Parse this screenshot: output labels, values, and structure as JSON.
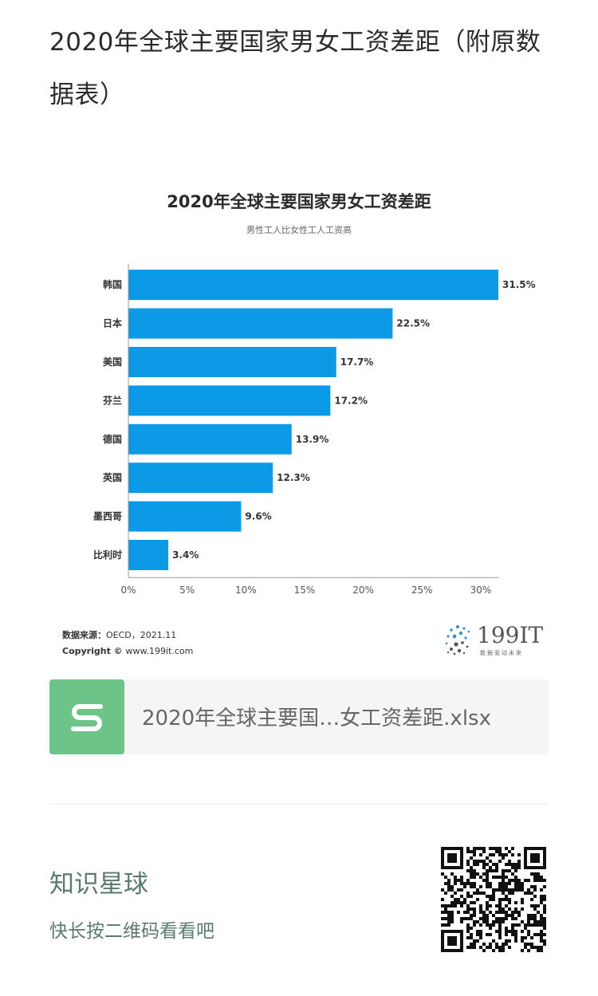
{
  "article": {
    "title": "2020年全球主要国家男女工资差距（附原数据表）"
  },
  "chart_data": {
    "type": "bar",
    "orientation": "horizontal",
    "title": "2020年全球主要国家男女工资差距",
    "subtitle": "男性工人比女性工人工资高",
    "categories": [
      "韩国",
      "日本",
      "美国",
      "芬兰",
      "德国",
      "英国",
      "墨西哥",
      "比利时"
    ],
    "values": [
      31.5,
      22.5,
      17.7,
      17.2,
      13.9,
      12.3,
      9.6,
      3.4
    ],
    "value_labels": [
      "31.5%",
      "22.5%",
      "17.7%",
      "17.2%",
      "13.9%",
      "12.3%",
      "9.6%",
      "3.4%"
    ],
    "xlim": [
      0,
      31.5
    ],
    "xticks": [
      0,
      5,
      10,
      15,
      20,
      25,
      30
    ],
    "xtick_labels": [
      "0%",
      "5%",
      "10%",
      "15%",
      "20%",
      "25%",
      "30%"
    ],
    "bar_color": "#0c9ae6",
    "grid": false,
    "legend": "none"
  },
  "source": {
    "label": "数据来源：",
    "value": "OECD，2021.11",
    "copyright_label": "Copyright ©",
    "copyright_value": "www.199it.com"
  },
  "brand": {
    "name": "199IT",
    "tagline": "数据驱动未来"
  },
  "file": {
    "icon": "spreadsheet-s-icon",
    "name": "2020年全球主要国…女工资差距.xlsx",
    "icon_color": "#6cc488"
  },
  "promo": {
    "title": "知识星球",
    "subtitle": "快长按二维码看看吧",
    "qr_icon": "qr-code-icon",
    "text_color": "#5a7a6e"
  }
}
